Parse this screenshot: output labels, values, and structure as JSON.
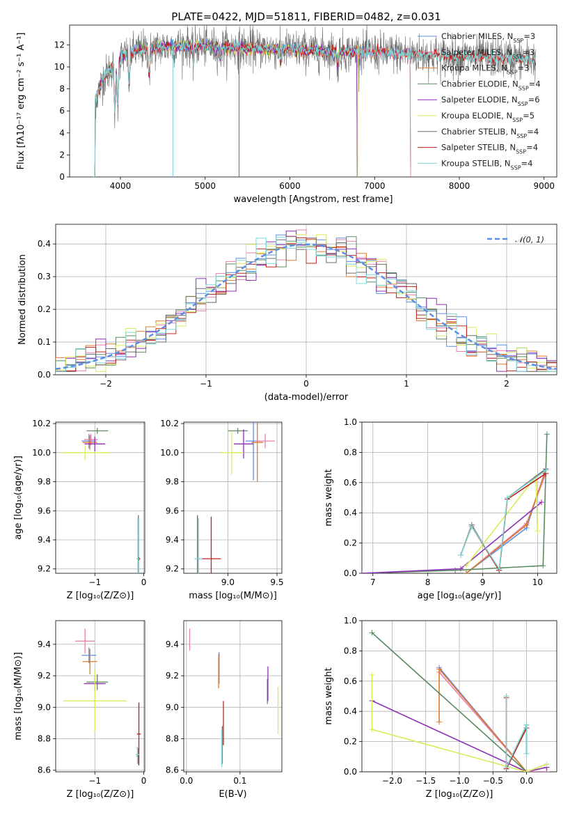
{
  "title": "PLATE=0422, MJD=51811, FIBERID=0482, z=0.031",
  "colors": {
    "Chabrier MILES": "#5b8ee6",
    "Salpeter MILES": "#e87fae",
    "Kroupa MILES": "#e07b2a",
    "Chabrier ELODIE": "#5a8a62",
    "Salpeter ELODIE": "#8e2fb8",
    "Kroupa ELODIE": "#d8ec5a",
    "Chabrier STELIB": "#6b6b6b",
    "Salpeter STELIB": "#c0201c",
    "Kroupa STELIB": "#7dd6d6"
  },
  "chart_data": [
    {
      "id": "spectrum",
      "type": "line",
      "title": "PLATE=0422, MJD=51811, FIBERID=0482, z=0.031",
      "xlabel": "wavelength [Angstrom, rest frame]",
      "ylabel": "Flux [fλ10⁻¹⁷ erg cm⁻² s⁻¹ A⁻¹]",
      "xlim": [
        3400,
        9150
      ],
      "ylim": [
        0,
        13.8
      ],
      "xticks": [
        4000,
        5000,
        6000,
        7000,
        8000,
        9000
      ],
      "yticks": [
        0,
        2,
        4,
        6,
        8,
        10,
        12
      ],
      "legend_position": "top-right",
      "series": [
        {
          "name": "Chabrier MILES, N_SSP=3",
          "x": [
            3680,
            3800,
            3900,
            4000,
            4100,
            4250,
            4400,
            4600,
            4900,
            5200,
            5600,
            6000,
            6400,
            6800,
            7200,
            7430
          ]
        },
        {
          "name": "Salpeter MILES, N_SSP=3"
        },
        {
          "name": "Kroupa MILES, N_SSP=3"
        },
        {
          "name": "Chabrier ELODIE, N_SSP=4"
        },
        {
          "name": "Salpeter ELODIE, N_SSP=6"
        },
        {
          "name": "Kroupa ELODIE, N_SSP=5"
        },
        {
          "name": "Chabrier STELIB, N_SSP=4"
        },
        {
          "name": "Salpeter STELIB, N_SSP=4"
        },
        {
          "name": "Kroupa STELIB, N_SSP=4"
        }
      ],
      "approx_flux_profile": {
        "x": [
          3680,
          3800,
          3950,
          4100,
          4300,
          4500,
          4800,
          5100,
          5500,
          6000,
          6500,
          7000,
          7400,
          7800,
          8200,
          8600,
          8900
        ],
        "y": [
          6.5,
          9.0,
          10.5,
          11.3,
          11.6,
          11.8,
          12.0,
          11.8,
          11.7,
          11.6,
          11.4,
          11.3,
          11.2,
          11.0,
          10.9,
          10.8,
          10.6
        ]
      }
    },
    {
      "id": "residuals",
      "type": "histogram",
      "xlabel": "(data-model)/error",
      "ylabel": "Normed distribution",
      "xlim": [
        -2.5,
        2.5
      ],
      "ylim": [
        0,
        0.46
      ],
      "xticks": [
        -2,
        -1,
        0,
        1,
        2
      ],
      "yticks": [
        0.0,
        0.1,
        0.2,
        0.3,
        0.4
      ],
      "legend": "𝒩(0, 1)",
      "legend_position": "top-right",
      "bin_width": 0.1
    },
    {
      "id": "age-vs-Z",
      "type": "errorbar",
      "xlabel": "Z [log₁₀(Z/Z⊙)]",
      "ylabel": "age  [log₁₀(age/yr)]",
      "xlim": [
        -1.8,
        0.02
      ],
      "ylim": [
        9.17,
        10.21
      ],
      "xticks": [
        -1,
        0
      ],
      "yticks": [
        9.2,
        9.4,
        9.6,
        9.8,
        10.0,
        10.2
      ],
      "points": [
        {
          "series": "Chabrier MILES",
          "x": -1.12,
          "y": 10.08,
          "xerr": 0.15,
          "yerr": 0.05
        },
        {
          "series": "Salpeter MILES",
          "x": -1.08,
          "y": 10.09,
          "xerr": 0.14,
          "yerr": 0.04
        },
        {
          "series": "Kroupa MILES",
          "x": -1.1,
          "y": 10.07,
          "xerr": 0.15,
          "yerr": 0.05
        },
        {
          "series": "Chabrier ELODIE",
          "x": -0.95,
          "y": 10.15,
          "xerr": 0.22,
          "yerr": 0.02
        },
        {
          "series": "Salpeter ELODIE",
          "x": -1.0,
          "y": 10.06,
          "xerr": 0.21,
          "yerr": 0.05
        },
        {
          "series": "Kroupa ELODIE",
          "x": -1.2,
          "y": 10.0,
          "xerr": 0.5,
          "yerr": 0.05
        },
        {
          "series": "Chabrier STELIB",
          "x": -0.11,
          "y": 9.27,
          "xerr": 0.03,
          "yerr": 0.3
        },
        {
          "series": "Salpeter STELIB",
          "x": -0.1,
          "y": 9.27,
          "xerr": 0.03,
          "yerr": 0.01
        },
        {
          "series": "Kroupa STELIB",
          "x": -0.12,
          "y": 9.27,
          "xerr": 0.03,
          "yerr": 0.28
        }
      ]
    },
    {
      "id": "age-vs-mass",
      "type": "errorbar",
      "xlabel": "mass [log₁₀(M/M⊙)]",
      "ylabel": "",
      "xlim": [
        8.55,
        9.55
      ],
      "ylim": [
        9.17,
        10.21
      ],
      "xticks": [
        9.0,
        9.5
      ],
      "yticks": [
        9.2,
        9.4,
        9.6,
        9.8,
        10.0,
        10.2
      ],
      "points": [
        {
          "series": "Chabrier MILES",
          "x": 9.26,
          "y": 10.08,
          "xerr": 0.08,
          "yerr": 0.27
        },
        {
          "series": "Salpeter MILES",
          "x": 9.38,
          "y": 10.08,
          "xerr": 0.1,
          "yerr": 0.05
        },
        {
          "series": "Kroupa MILES",
          "x": 9.3,
          "y": 10.07,
          "xerr": 0.06,
          "yerr": 0.27
        },
        {
          "series": "Chabrier ELODIE",
          "x": 9.1,
          "y": 10.15,
          "xerr": 0.1,
          "yerr": 0.02
        },
        {
          "series": "Salpeter ELODIE",
          "x": 9.16,
          "y": 10.06,
          "xerr": 0.1,
          "yerr": 0.1
        },
        {
          "series": "Kroupa ELODIE",
          "x": 9.04,
          "y": 10.0,
          "xerr": 0.12,
          "yerr": 0.15
        },
        {
          "series": "Chabrier STELIB",
          "x": 8.69,
          "y": 9.27,
          "xerr": 0.03,
          "yerr": 0.3
        },
        {
          "series": "Salpeter STELIB",
          "x": 8.83,
          "y": 9.27,
          "xerr": 0.1,
          "yerr": 0.29
        },
        {
          "series": "Kroupa STELIB",
          "x": 8.7,
          "y": 9.27,
          "xerr": 0.04,
          "yerr": 0.28
        }
      ]
    },
    {
      "id": "mass-weight-vs-age",
      "type": "line",
      "xlabel": "age  [log₁₀(age/yr)]",
      "ylabel": "mass weight",
      "xlim": [
        6.8,
        10.35
      ],
      "ylim": [
        0,
        1.0
      ],
      "xticks": [
        7,
        8,
        9,
        10
      ],
      "yticks": [
        0.0,
        0.2,
        0.4,
        0.6,
        0.8,
        1.0
      ],
      "series": [
        {
          "name": "Chabrier MILES",
          "x": [
            8.7,
            9.8,
            10.15
          ],
          "y": [
            0.0,
            0.3,
            0.69
          ]
        },
        {
          "name": "Salpeter MILES",
          "x": [
            8.7,
            9.8,
            10.15
          ],
          "y": [
            0.0,
            0.33,
            0.66
          ]
        },
        {
          "name": "Kroupa MILES",
          "x": [
            8.7,
            9.8,
            10.15
          ],
          "y": [
            0.0,
            0.32,
            0.68
          ]
        },
        {
          "name": "Chabrier ELODIE",
          "x": [
            6.8,
            8.5,
            10.1,
            10.17
          ],
          "y": [
            0.0,
            0.02,
            0.05,
            0.92
          ]
        },
        {
          "name": "Salpeter ELODIE",
          "x": [
            6.8,
            8.6,
            10.07
          ],
          "y": [
            0.0,
            0.03,
            0.47
          ]
        },
        {
          "name": "Kroupa ELODIE",
          "x": [
            8.7,
            9.97,
            10.0
          ],
          "y": [
            0.05,
            0.64,
            0.28
          ]
        },
        {
          "name": "Chabrier STELIB",
          "x": [
            8.6,
            8.8,
            9.3,
            9.45,
            10.15
          ],
          "y": [
            0.12,
            0.32,
            0.02,
            0.5,
            0.69
          ]
        },
        {
          "name": "Salpeter STELIB",
          "x": [
            8.6,
            8.8,
            9.3,
            9.45,
            10.15
          ],
          "y": [
            0.12,
            0.31,
            0.02,
            0.49,
            0.66
          ]
        },
        {
          "name": "Kroupa STELIB",
          "x": [
            8.6,
            8.8,
            9.3,
            9.45,
            10.15
          ],
          "y": [
            0.12,
            0.31,
            0.03,
            0.5,
            0.68
          ]
        }
      ]
    },
    {
      "id": "mass-vs-Z",
      "type": "errorbar",
      "xlabel": "Z [log₁₀(Z/Z⊙)]",
      "ylabel": "mass [log₁₀(M/M⊙)]",
      "xlim": [
        -1.8,
        0.02
      ],
      "ylim": [
        8.59,
        9.55
      ],
      "xticks": [
        -1,
        0
      ],
      "yticks": [
        8.6,
        8.8,
        9.0,
        9.2,
        9.4
      ],
      "points": [
        {
          "series": "Chabrier MILES",
          "x": -1.12,
          "y": 9.33,
          "xerr": 0.15,
          "yerr": 0.05
        },
        {
          "series": "Salpeter MILES",
          "x": -1.2,
          "y": 9.42,
          "xerr": 0.2,
          "yerr": 0.08
        },
        {
          "series": "Kroupa MILES",
          "x": -1.1,
          "y": 9.29,
          "xerr": 0.15,
          "yerr": 0.08
        },
        {
          "series": "Chabrier ELODIE",
          "x": -0.95,
          "y": 9.16,
          "xerr": 0.22,
          "yerr": 0.05
        },
        {
          "series": "Salpeter ELODIE",
          "x": -1.0,
          "y": 9.15,
          "xerr": 0.22,
          "yerr": 0.05
        },
        {
          "series": "Kroupa ELODIE",
          "x": -1.0,
          "y": 9.04,
          "xerr": 0.65,
          "yerr": 0.2
        },
        {
          "series": "Chabrier STELIB",
          "x": -0.12,
          "y": 8.69,
          "xerr": 0.03,
          "yerr": 0.05
        },
        {
          "series": "Salpeter STELIB",
          "x": -0.1,
          "y": 8.83,
          "xerr": 0.04,
          "yerr": 0.2
        },
        {
          "series": "Kroupa STELIB",
          "x": -0.13,
          "y": 8.7,
          "xerr": 0.04,
          "yerr": 0.05
        }
      ]
    },
    {
      "id": "mass-vs-EBV",
      "type": "errorbar",
      "xlabel": "E(B-V)",
      "ylabel": "",
      "xlim": [
        -0.005,
        0.178
      ],
      "ylim": [
        8.59,
        9.55
      ],
      "xticks": [
        0.0,
        0.1
      ],
      "yticks": [
        8.6,
        8.8,
        9.0,
        9.2,
        9.4
      ],
      "points": [
        {
          "series": "Chabrier MILES",
          "x": 0.061,
          "y": 9.25,
          "yerr": 0.1
        },
        {
          "series": "Salpeter MILES",
          "x": 0.006,
          "y": 9.43,
          "yerr": 0.07
        },
        {
          "series": "Kroupa MILES",
          "x": 0.06,
          "y": 9.23,
          "yerr": 0.11
        },
        {
          "series": "Chabrier ELODIE",
          "x": 0.151,
          "y": 9.1,
          "yerr": 0.08
        },
        {
          "series": "Salpeter ELODIE",
          "x": 0.152,
          "y": 9.15,
          "yerr": 0.11
        },
        {
          "series": "Kroupa ELODIE",
          "x": 0.171,
          "y": 8.98,
          "yerr": 0.15
        },
        {
          "series": "Chabrier STELIB",
          "x": 0.067,
          "y": 8.76,
          "yerr": 0.12
        },
        {
          "series": "Salpeter STELIB",
          "x": 0.069,
          "y": 8.9,
          "yerr": 0.14
        },
        {
          "series": "Kroupa STELIB",
          "x": 0.066,
          "y": 8.74,
          "yerr": 0.12
        }
      ]
    },
    {
      "id": "mass-weight-vs-Z",
      "type": "line",
      "xlabel": "Z [log₁₀(Z/Z⊙)]",
      "ylabel": "mass weight",
      "xlim": [
        -2.45,
        0.45
      ],
      "ylim": [
        0,
        1.0
      ],
      "xticks": [
        -2.0,
        -1.5,
        -1.0,
        -0.5,
        0.0
      ],
      "yticks": [
        0.0,
        0.2,
        0.4,
        0.6,
        0.8,
        1.0
      ],
      "series": [
        {
          "name": "Chabrier MILES",
          "x": [
            -1.3,
            0.0,
            0.3,
            0.3
          ],
          "y": [
            0.69,
            0.0,
            0.0,
            0.03
          ]
        },
        {
          "name": "Salpeter MILES",
          "x": [
            -1.3,
            0.0,
            0.3,
            0.3
          ],
          "y": [
            0.66,
            0.0,
            0.0,
            0.03
          ]
        },
        {
          "name": "Kroupa MILES",
          "x": [
            -1.3,
            -1.3,
            0.0,
            0.3
          ],
          "y": [
            0.33,
            0.68,
            0.0,
            0.03
          ]
        },
        {
          "name": "Chabrier ELODIE",
          "x": [
            -2.3,
            0.0,
            0.3
          ],
          "y": [
            0.92,
            0.0,
            0.05
          ]
        },
        {
          "name": "Salpeter ELODIE",
          "x": [
            -2.3,
            0.0,
            0.3
          ],
          "y": [
            0.47,
            0.0,
            0.03
          ]
        },
        {
          "name": "Kroupa ELODIE",
          "x": [
            -2.3,
            -2.3,
            0.0,
            0.3
          ],
          "y": [
            0.64,
            0.28,
            0.0,
            0.05
          ]
        },
        {
          "name": "Chabrier STELIB",
          "x": [
            -0.3,
            -0.3,
            0.0,
            0.0
          ],
          "y": [
            0.5,
            0.02,
            0.31,
            0.12
          ]
        },
        {
          "name": "Salpeter STELIB",
          "x": [
            -0.3,
            -0.3,
            0.0,
            0.0
          ],
          "y": [
            0.49,
            0.02,
            0.29,
            0.12
          ]
        },
        {
          "name": "Kroupa STELIB",
          "x": [
            -0.3,
            -0.3,
            0.0,
            0.0
          ],
          "y": [
            0.5,
            0.03,
            0.31,
            0.12
          ]
        }
      ]
    }
  ]
}
